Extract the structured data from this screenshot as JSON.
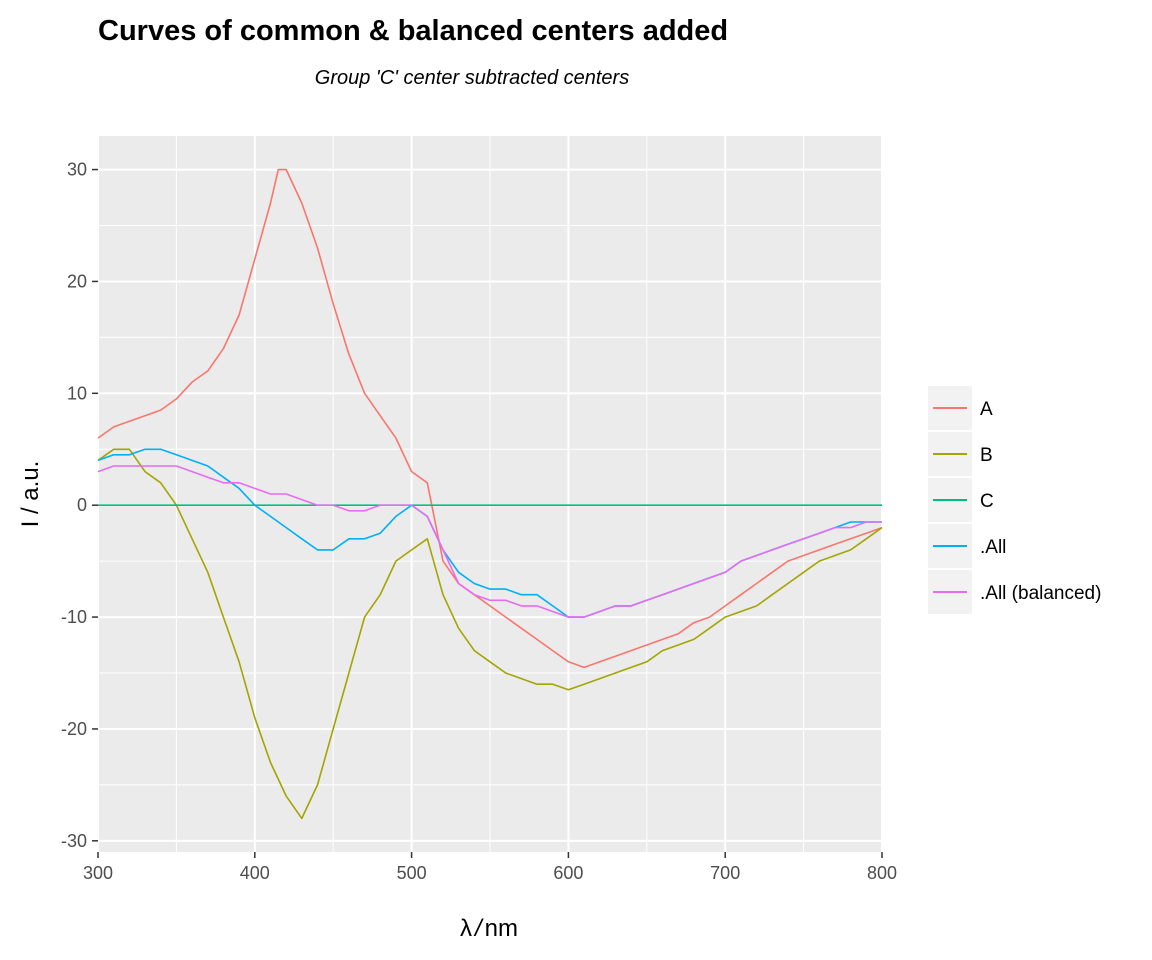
{
  "chart_data": {
    "type": "line",
    "title": "Curves of common & balanced centers added",
    "subtitle": "Group 'C' center subtracted centers",
    "xlabel_symbol": "λ",
    "xlabel_unit": "nm",
    "ylabel": "I / a.u.",
    "xlim": [
      300,
      800
    ],
    "ylim": [
      -31,
      33
    ],
    "x_ticks": [
      300,
      400,
      500,
      600,
      700,
      800
    ],
    "y_ticks": [
      -30,
      -20,
      -10,
      0,
      10,
      20,
      30
    ],
    "grid": true,
    "legend_position": "right",
    "series": [
      {
        "name": "A",
        "color": "#F8766D",
        "x": [
          300,
          310,
          320,
          330,
          340,
          350,
          360,
          370,
          380,
          390,
          400,
          410,
          415,
          420,
          430,
          440,
          450,
          460,
          470,
          480,
          490,
          500,
          510,
          520,
          530,
          540,
          550,
          560,
          570,
          580,
          590,
          600,
          610,
          620,
          630,
          640,
          650,
          660,
          670,
          680,
          690,
          700,
          710,
          720,
          730,
          740,
          750,
          760,
          770,
          780,
          790,
          800
        ],
        "y": [
          6,
          7,
          7.5,
          8,
          8.5,
          9.5,
          11,
          12,
          14,
          17,
          22,
          27,
          30,
          30,
          27,
          23,
          18,
          13.5,
          10,
          8,
          6,
          3,
          2,
          -5,
          -7,
          -8,
          -9,
          -10,
          -11,
          -12,
          -13,
          -14,
          -14.5,
          -14,
          -13.5,
          -13,
          -12.5,
          -12,
          -11.5,
          -10.5,
          -10,
          -9,
          -8,
          -7,
          -6,
          -5,
          -4.5,
          -4,
          -3.5,
          -3,
          -2.5,
          -2
        ]
      },
      {
        "name": "B",
        "color": "#A3A500",
        "x": [
          300,
          310,
          320,
          330,
          340,
          350,
          360,
          370,
          380,
          390,
          400,
          410,
          420,
          430,
          440,
          450,
          460,
          470,
          480,
          490,
          500,
          510,
          520,
          530,
          540,
          550,
          560,
          570,
          580,
          590,
          600,
          610,
          620,
          630,
          640,
          650,
          660,
          670,
          680,
          690,
          700,
          710,
          720,
          730,
          740,
          750,
          760,
          770,
          780,
          790,
          800
        ],
        "y": [
          4,
          5,
          5,
          3,
          2,
          0,
          -3,
          -6,
          -10,
          -14,
          -19,
          -23,
          -26,
          -28,
          -25,
          -20,
          -15,
          -10,
          -8,
          -5,
          -4,
          -3,
          -8,
          -11,
          -13,
          -14,
          -15,
          -15.5,
          -16,
          -16,
          -16.5,
          -16,
          -15.5,
          -15,
          -14.5,
          -14,
          -13,
          -12.5,
          -12,
          -11,
          -10,
          -9.5,
          -9,
          -8,
          -7,
          -6,
          -5,
          -4.5,
          -4,
          -3,
          -2
        ]
      },
      {
        "name": "C",
        "color": "#00BF7D",
        "x": [
          300,
          800
        ],
        "y": [
          0,
          0
        ]
      },
      {
        "name": ".All",
        "color": "#00B0F6",
        "x": [
          300,
          310,
          320,
          330,
          340,
          350,
          360,
          370,
          380,
          390,
          400,
          410,
          420,
          430,
          440,
          450,
          460,
          470,
          480,
          490,
          500,
          510,
          520,
          530,
          540,
          550,
          560,
          570,
          580,
          590,
          600,
          610,
          620,
          630,
          640,
          650,
          660,
          670,
          680,
          690,
          700,
          710,
          720,
          730,
          740,
          750,
          760,
          770,
          780,
          790,
          800
        ],
        "y": [
          4,
          4.5,
          4.5,
          5,
          5,
          4.5,
          4,
          3.5,
          2.5,
          1.5,
          0,
          -1,
          -2,
          -3,
          -4,
          -4,
          -3,
          -3,
          -2.5,
          -1,
          0,
          -1,
          -4,
          -6,
          -7,
          -7.5,
          -7.5,
          -8,
          -8,
          -9,
          -10,
          -10,
          -9.5,
          -9,
          -9,
          -8.5,
          -8,
          -7.5,
          -7,
          -6.5,
          -6,
          -5,
          -4.5,
          -4,
          -3.5,
          -3,
          -2.5,
          -2,
          -1.5,
          -1.5,
          -1.5
        ]
      },
      {
        "name": ".All (balanced)",
        "color": "#E76BF3",
        "x": [
          300,
          310,
          320,
          330,
          340,
          350,
          360,
          370,
          380,
          390,
          400,
          410,
          420,
          430,
          440,
          450,
          460,
          470,
          480,
          490,
          500,
          510,
          520,
          530,
          540,
          550,
          560,
          570,
          580,
          590,
          600,
          610,
          620,
          630,
          640,
          650,
          660,
          670,
          680,
          690,
          700,
          710,
          720,
          730,
          740,
          750,
          760,
          770,
          780,
          790,
          800
        ],
        "y": [
          3,
          3.5,
          3.5,
          3.5,
          3.5,
          3.5,
          3,
          2.5,
          2,
          2,
          1.5,
          1,
          1,
          0.5,
          0,
          0,
          -0.5,
          -0.5,
          0,
          0,
          0,
          -1,
          -4,
          -7,
          -8,
          -8.5,
          -8.5,
          -9,
          -9,
          -9.5,
          -10,
          -10,
          -9.5,
          -9,
          -9,
          -8.5,
          -8,
          -7.5,
          -7,
          -6.5,
          -6,
          -5,
          -4.5,
          -4,
          -3.5,
          -3,
          -2.5,
          -2,
          -2,
          -1.5,
          -1.5
        ]
      }
    ]
  }
}
